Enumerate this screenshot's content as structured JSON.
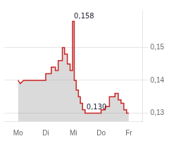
{
  "chart_data": {
    "type": "area",
    "x": [
      0.0,
      0.08,
      0.2,
      1.0,
      1.0,
      1.2,
      1.2,
      1.35,
      1.35,
      1.45,
      1.45,
      1.6,
      1.6,
      1.68,
      1.68,
      1.78,
      1.78,
      1.88,
      1.88,
      1.97,
      1.97,
      2.03,
      2.03,
      2.1,
      2.1,
      2.18,
      2.18,
      2.25,
      2.25,
      2.33,
      2.33,
      2.42,
      2.42,
      2.6,
      2.6,
      3.0,
      3.0,
      3.15,
      3.15,
      3.3,
      3.3,
      3.5,
      3.5,
      3.62,
      3.62,
      3.72,
      3.72,
      3.82,
      3.82,
      3.92,
      3.92,
      4.0
    ],
    "values": [
      0.14,
      0.139,
      0.14,
      0.14,
      0.142,
      0.142,
      0.144,
      0.144,
      0.143,
      0.143,
      0.146,
      0.146,
      0.15,
      0.15,
      0.148,
      0.148,
      0.145,
      0.145,
      0.143,
      0.143,
      0.158,
      0.158,
      0.14,
      0.14,
      0.137,
      0.137,
      0.135,
      0.135,
      0.133,
      0.133,
      0.131,
      0.131,
      0.13,
      0.13,
      0.13,
      0.13,
      0.131,
      0.131,
      0.132,
      0.132,
      0.135,
      0.135,
      0.136,
      0.136,
      0.134,
      0.134,
      0.133,
      0.133,
      0.131,
      0.131,
      0.13,
      0.13
    ],
    "color": "#cc2222",
    "xlim": [
      -0.5,
      4.5
    ],
    "xticks": [
      {
        "value": 0,
        "label": "Mo"
      },
      {
        "value": 1,
        "label": "Di"
      },
      {
        "value": 2,
        "label": "Mi"
      },
      {
        "value": 3,
        "label": "Do"
      },
      {
        "value": 4,
        "label": "Fr"
      }
    ],
    "ylim": [
      0.1275,
      0.1615
    ],
    "yticks": [
      {
        "value": 0.13,
        "label": "0,13"
      },
      {
        "value": 0.14,
        "label": "0,14"
      },
      {
        "value": 0.15,
        "label": "0,15"
      }
    ],
    "annotations": [
      "0,158",
      "0,130"
    ],
    "grid": true
  }
}
